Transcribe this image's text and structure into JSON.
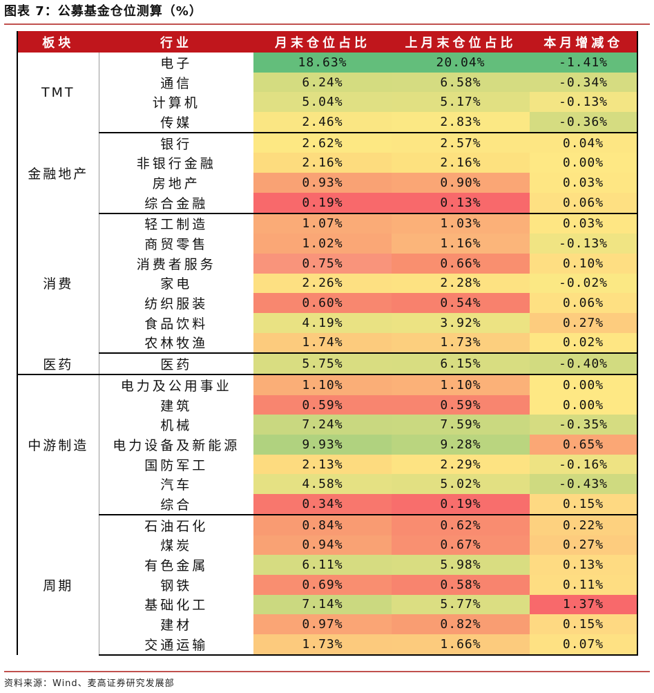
{
  "title": "图表 7：公募基金仓位测算（%）",
  "headers": [
    "板块",
    "行业",
    "月末仓位占比",
    "上月末仓位占比",
    "本月增减仓"
  ],
  "groups": [
    {
      "sector": "TMT",
      "rows": [
        {
          "industry": "电子",
          "cur": "18.63%",
          "prev": "20.04%",
          "chg": "-1.41%",
          "colors": [
            "#63be7b",
            "#63be7b",
            "#63be7b"
          ]
        },
        {
          "industry": "通信",
          "cur": "6.24%",
          "prev": "6.58%",
          "chg": "-0.34%",
          "colors": [
            "#d4dc80",
            "#d5dc81",
            "#d6dc81"
          ]
        },
        {
          "industry": "计算机",
          "cur": "5.04%",
          "prev": "5.17%",
          "chg": "-0.13%",
          "colors": [
            "#e0e083",
            "#e1e082",
            "#f3e584"
          ]
        },
        {
          "industry": "传媒",
          "cur": "2.46%",
          "prev": "2.83%",
          "chg": "-0.36%",
          "colors": [
            "#fae683",
            "#fbe884",
            "#d5dc81"
          ]
        }
      ]
    },
    {
      "sector": "金融地产",
      "rows": [
        {
          "industry": "银行",
          "cur": "2.62%",
          "prev": "2.57%",
          "chg": "0.04%",
          "colors": [
            "#fde883",
            "#fde683",
            "#fde683"
          ]
        },
        {
          "industry": "非银行金融",
          "cur": "2.16%",
          "prev": "2.16%",
          "chg": "0.00%",
          "colors": [
            "#fddc7e",
            "#fde17f",
            "#fee884"
          ]
        },
        {
          "industry": "房地产",
          "cur": "0.93%",
          "prev": "0.90%",
          "chg": "0.03%",
          "colors": [
            "#f9a274",
            "#faa675",
            "#fee683"
          ]
        },
        {
          "industry": "综合金融",
          "cur": "0.19%",
          "prev": "0.13%",
          "chg": "0.06%",
          "colors": [
            "#f8696b",
            "#f8696b",
            "#fee082"
          ]
        }
      ]
    },
    {
      "sector": "消费",
      "rows": [
        {
          "industry": "轻工制造",
          "cur": "1.07%",
          "prev": "1.03%",
          "chg": "0.03%",
          "colors": [
            "#faab77",
            "#fbb078",
            "#fee683"
          ]
        },
        {
          "industry": "商贸零售",
          "cur": "1.02%",
          "prev": "1.16%",
          "chg": "-0.13%",
          "colors": [
            "#faa776",
            "#fbb57a",
            "#f0e483"
          ]
        },
        {
          "industry": "消费者服务",
          "cur": "0.75%",
          "prev": "0.66%",
          "chg": "0.10%",
          "colors": [
            "#f9947b",
            "#f98f6f",
            "#fede82"
          ]
        },
        {
          "industry": "家电",
          "cur": "2.26%",
          "prev": "2.28%",
          "chg": "-0.02%",
          "colors": [
            "#fde082",
            "#fde282",
            "#fbe884"
          ]
        },
        {
          "industry": "纺织服装",
          "cur": "0.60%",
          "prev": "0.54%",
          "chg": "0.06%",
          "colors": [
            "#f8876f",
            "#f8816d",
            "#fee082"
          ]
        },
        {
          "industry": "食品饮料",
          "cur": "4.19%",
          "prev": "3.92%",
          "chg": "0.27%",
          "colors": [
            "#e9e283",
            "#ece383",
            "#fdcc7e"
          ]
        },
        {
          "industry": "农林牧渔",
          "cur": "1.74%",
          "prev": "1.73%",
          "chg": "0.02%",
          "colors": [
            "#fccb7d",
            "#fccf7e",
            "#fee683"
          ]
        }
      ]
    },
    {
      "sector": "医药",
      "rows": [
        {
          "industry": "医药",
          "cur": "5.75%",
          "prev": "6.15%",
          "chg": "-0.40%",
          "colors": [
            "#d9dd81",
            "#d8dd81",
            "#d2db80"
          ]
        }
      ]
    },
    {
      "sector": "中游制造",
      "rows": [
        {
          "industry": "电力及公用事业",
          "cur": "1.10%",
          "prev": "1.10%",
          "chg": "0.00%",
          "colors": [
            "#faae77",
            "#fbb178",
            "#fee884"
          ]
        },
        {
          "industry": "建筑",
          "cur": "0.59%",
          "prev": "0.59%",
          "chg": "0.00%",
          "colors": [
            "#f8856f",
            "#f8856f",
            "#fee884"
          ]
        },
        {
          "industry": "机械",
          "cur": "7.24%",
          "prev": "7.59%",
          "chg": "-0.35%",
          "colors": [
            "#c9d880",
            "#cad980",
            "#d5dc81"
          ]
        },
        {
          "industry": "电力设备及新能源",
          "cur": "9.93%",
          "prev": "9.28%",
          "chg": "0.65%",
          "colors": [
            "#b0d27f",
            "#bad57f",
            "#fba775"
          ]
        },
        {
          "industry": "国防军工",
          "cur": "2.13%",
          "prev": "2.29%",
          "chg": "-0.16%",
          "colors": [
            "#fddb7f",
            "#fde382",
            "#eee383"
          ]
        },
        {
          "industry": "汽车",
          "cur": "4.58%",
          "prev": "5.02%",
          "chg": "-0.43%",
          "colors": [
            "#e5e183",
            "#e2e082",
            "#cfda80"
          ]
        },
        {
          "industry": "综合",
          "cur": "0.34%",
          "prev": "0.19%",
          "chg": "0.15%",
          "colors": [
            "#f8776d",
            "#f86e6c",
            "#fed982"
          ]
        }
      ]
    },
    {
      "sector": "周期",
      "rows": [
        {
          "industry": "石油石化",
          "cur": "0.84%",
          "prev": "0.62%",
          "chg": "0.22%",
          "colors": [
            "#f99b72",
            "#f98c70",
            "#fdd17f"
          ]
        },
        {
          "industry": "煤炭",
          "cur": "0.94%",
          "prev": "0.67%",
          "chg": "0.27%",
          "colors": [
            "#f9a274",
            "#f99071",
            "#fdcc7e"
          ]
        },
        {
          "industry": "有色金属",
          "cur": "6.11%",
          "prev": "5.98%",
          "chg": "0.13%",
          "colors": [
            "#d6dc81",
            "#d9dd81",
            "#fedb82"
          ]
        },
        {
          "industry": "钢铁",
          "cur": "0.69%",
          "prev": "0.58%",
          "chg": "0.11%",
          "colors": [
            "#f98e70",
            "#f8846e",
            "#fedd82"
          ]
        },
        {
          "industry": "基础化工",
          "cur": "7.14%",
          "prev": "5.77%",
          "chg": "1.37%",
          "colors": [
            "#cbd980",
            "#dbde82",
            "#f8696b"
          ]
        },
        {
          "industry": "建材",
          "cur": "0.97%",
          "prev": "0.82%",
          "chg": "0.15%",
          "colors": [
            "#faa575",
            "#f99d72",
            "#fed982"
          ]
        },
        {
          "industry": "交通运输",
          "cur": "1.73%",
          "prev": "1.66%",
          "chg": "0.07%",
          "colors": [
            "#fcca7d",
            "#fccb7d",
            "#fee183"
          ]
        }
      ]
    }
  ],
  "source": "资料来源：Wind、麦高证券研究发展部"
}
